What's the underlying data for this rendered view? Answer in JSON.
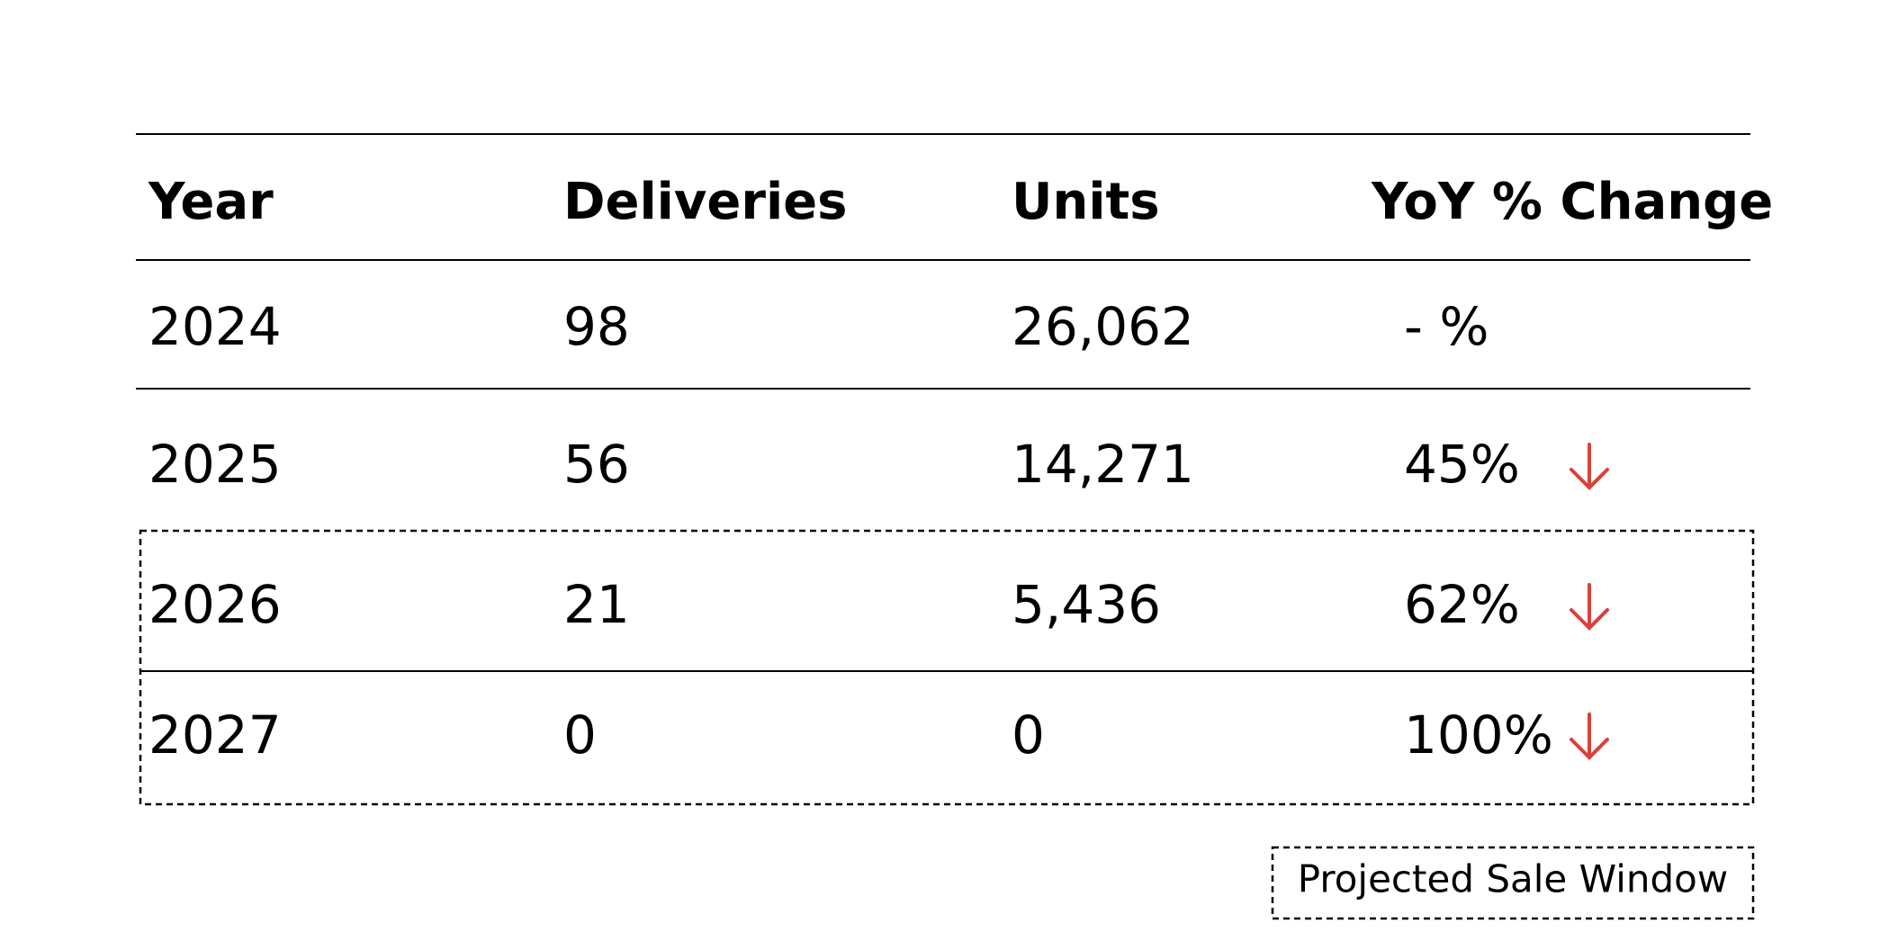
{
  "table": {
    "header": [
      "Year",
      "Deliveries",
      "Units",
      "YoY % Change"
    ],
    "rows": [
      [
        "2024",
        "98",
        "26,062",
        "- %"
      ],
      [
        "2025",
        "56",
        "14,271",
        "45%"
      ],
      [
        "2026",
        "21",
        "5,436",
        "62%"
      ],
      [
        "2027",
        "0",
        "0",
        "100%"
      ]
    ]
  },
  "legend": "Projected Sale Window"
}
